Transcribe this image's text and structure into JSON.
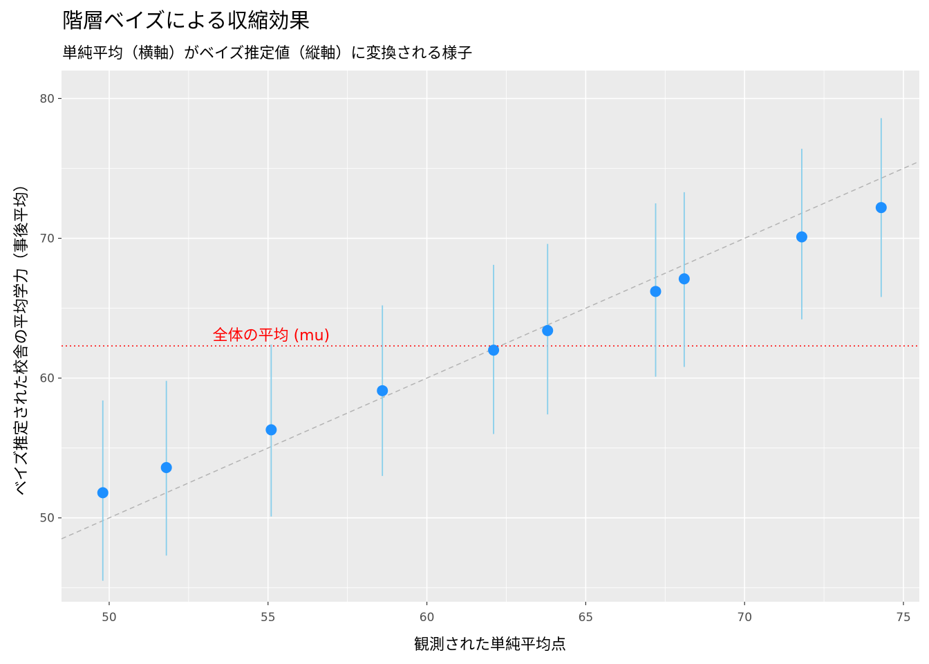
{
  "chart_data": {
    "type": "scatter",
    "title": "階層ベイズによる収縮効果",
    "subtitle": "単純平均（横軸）がベイズ推定値（縦軸）に変換される様子",
    "xlabel": "観測された単純平均点",
    "ylabel": "ベイズ推定された校舎の平均学力（事後平均）",
    "xlim": [
      48.5,
      75.5
    ],
    "ylim": [
      44,
      82
    ],
    "x_ticks": [
      50,
      55,
      60,
      65,
      70,
      75
    ],
    "y_ticks": [
      50,
      60,
      70,
      80
    ],
    "grid": true,
    "points": [
      {
        "x": 49.8,
        "y": 51.8,
        "lower": 45.5,
        "upper": 58.4
      },
      {
        "x": 51.8,
        "y": 53.6,
        "lower": 47.3,
        "upper": 59.8
      },
      {
        "x": 55.1,
        "y": 56.3,
        "lower": 50.1,
        "upper": 62.4
      },
      {
        "x": 58.6,
        "y": 59.1,
        "lower": 53.0,
        "upper": 65.2
      },
      {
        "x": 62.1,
        "y": 62.0,
        "lower": 56.0,
        "upper": 68.1
      },
      {
        "x": 63.8,
        "y": 63.4,
        "lower": 57.4,
        "upper": 69.6
      },
      {
        "x": 67.2,
        "y": 66.2,
        "lower": 60.1,
        "upper": 72.5
      },
      {
        "x": 68.1,
        "y": 67.1,
        "lower": 60.8,
        "upper": 73.3
      },
      {
        "x": 71.8,
        "y": 70.1,
        "lower": 64.2,
        "upper": 76.4
      },
      {
        "x": 74.3,
        "y": 72.2,
        "lower": 65.8,
        "upper": 78.6
      }
    ],
    "reference_line": {
      "type": "identity",
      "color": "#b3b3b3"
    },
    "mean_line": {
      "y": 62.3,
      "label": "全体の平均 (mu)",
      "label_x": 55.1,
      "color": "#ff0000"
    },
    "colors": {
      "point": "#1e90ff",
      "interval": "#87ceeb",
      "panel": "#ebebeb",
      "grid": "#ffffff"
    }
  }
}
